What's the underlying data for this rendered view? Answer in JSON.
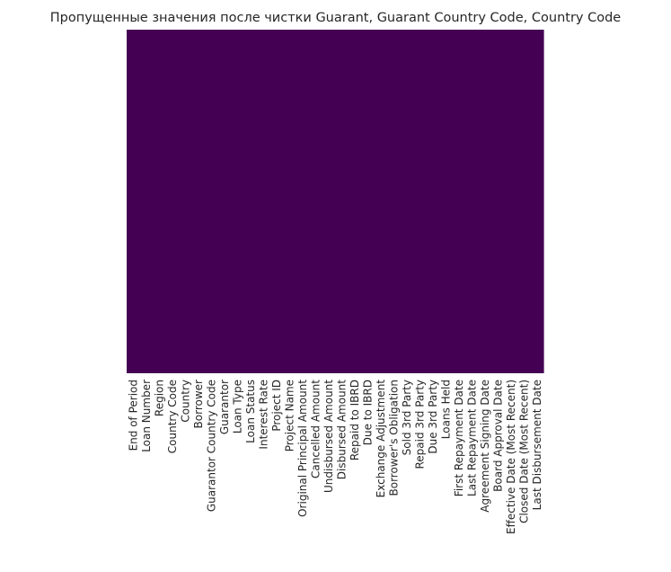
{
  "chart_data": {
    "type": "heatmap",
    "title": "Пропущенные значения после чистки Guarant, Guarant Country Code, Country Code",
    "xlabel": "",
    "ylabel": "",
    "columns": [
      "End of Period",
      "Loan Number",
      "Region",
      "Country Code",
      "Country",
      "Borrower",
      "Guarantor Country Code",
      "Guarantor",
      "Loan Type",
      "Loan Status",
      "Interest Rate",
      "Project ID",
      "Project Name",
      "Original Principal Amount",
      "Cancelled Amount",
      "Undisbursed Amount",
      "Disbursed Amount",
      "Repaid to IBRD",
      "Due to IBRD",
      "Exchange Adjustment",
      "Borrower's Obligation",
      "Sold 3rd Party",
      "Repaid 3rd Party",
      "Due 3rd Party",
      "Loans Held",
      "First Repayment Date",
      "Last Repayment Date",
      "Agreement Signing Date",
      "Board Approval Date",
      "Effective Date (Most Recent)",
      "Closed Date (Most Recent)",
      "Last Disbursement Date"
    ],
    "values_missing": [
      0,
      0,
      0,
      0,
      0,
      0,
      0,
      0,
      0,
      0,
      0,
      0,
      0,
      0,
      0,
      0,
      0,
      0,
      0,
      0,
      0,
      0,
      0,
      0,
      0,
      0,
      0,
      0,
      0,
      0,
      0,
      0
    ],
    "colorbar": false,
    "y_tick_labels": false,
    "cmap": "viridis",
    "colors": {
      "present": "#440154",
      "missing": "#fde725"
    }
  }
}
